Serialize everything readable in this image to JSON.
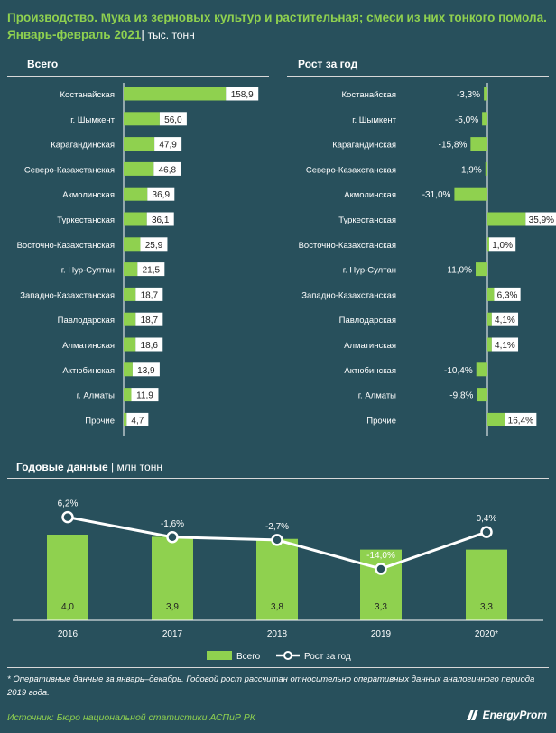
{
  "header": {
    "title": "Производство. Мука из зерновых культур и растительная; смеси из них тонкого помола.",
    "subtitle": "Январь-февраль 2021",
    "unit": "тыс. тонн"
  },
  "chart_data": [
    {
      "type": "bar",
      "orientation": "horizontal",
      "title": "Всего",
      "unit": "тыс. тонн",
      "categories": [
        "Костанайская",
        "г. Шымкент",
        "Карагандинская",
        "Северо-Казахстанская",
        "Акмолинская",
        "Туркестанская",
        "Восточно-Казахстанская",
        "г. Нур-Султан",
        "Западно-Казахстанская",
        "Павлодарская",
        "Алматинская",
        "Актюбинская",
        "г. Алматы",
        "Прочие"
      ],
      "values": [
        158.9,
        56.0,
        47.9,
        46.8,
        36.9,
        36.1,
        25.9,
        21.5,
        18.7,
        18.7,
        18.6,
        13.9,
        11.9,
        4.7
      ],
      "labels": [
        "158,9",
        "56,0",
        "47,9",
        "46,8",
        "36,9",
        "36,1",
        "25,9",
        "21,5",
        "18,7",
        "18,7",
        "18,6",
        "13,9",
        "11,9",
        "4,7"
      ],
      "xlim": [
        0,
        160
      ]
    },
    {
      "type": "bar",
      "orientation": "horizontal",
      "title": "Рост за год",
      "unit": "%",
      "categories": [
        "Костанайская",
        "г. Шымкент",
        "Карагандинская",
        "Северо-Казахстанская",
        "Акмолинская",
        "Туркестанская",
        "Восточно-Казахстанская",
        "г. Нур-Султан",
        "Западно-Казахстанская",
        "Павлодарская",
        "Алматинская",
        "Актюбинская",
        "г. Алматы",
        "Прочие"
      ],
      "values": [
        -3.3,
        -5.0,
        -15.8,
        -1.9,
        -31.0,
        35.9,
        1.0,
        -11.0,
        6.3,
        4.1,
        4.1,
        -10.4,
        -9.8,
        16.4
      ],
      "labels": [
        "-3,3%",
        "-5,0%",
        "-15,8%",
        "-1,9%",
        "-31,0%",
        "35,9%",
        "1,0%",
        "-11,0%",
        "6,3%",
        "4,1%",
        "4,1%",
        "-10,4%",
        "-9,8%",
        "16,4%"
      ],
      "xlim": [
        -31,
        36
      ]
    },
    {
      "type": "bar+line",
      "title": "Годовые данные",
      "unit": "млн тонн",
      "categories": [
        "2016",
        "2017",
        "2018",
        "2019",
        "2020*"
      ],
      "series": [
        {
          "name": "Всего",
          "type": "bar",
          "values": [
            4.0,
            3.9,
            3.8,
            3.3,
            3.3
          ],
          "labels": [
            "4,0",
            "3,9",
            "3,8",
            "3,3",
            "3,3"
          ]
        },
        {
          "name": "Рост за год",
          "type": "line",
          "values": [
            6.2,
            -1.6,
            -2.7,
            -14.0,
            0.4
          ],
          "labels": [
            "6,2%",
            "-1,6%",
            "-2,7%",
            "-14,0%",
            "0,4%"
          ]
        }
      ],
      "ylim_bars": [
        0,
        5.5
      ],
      "ylim_line": [
        -20,
        11
      ],
      "legend": "bottom-center"
    }
  ],
  "footnote": "* Оперативные данные за январь–декабрь. Годовой рост рассчитан относительно оперативных данных аналогичного периода 2019 года.",
  "source": "Источник: Бюро национальной статистики АСПиР РК",
  "logo": "EnergyProm",
  "colors": {
    "background": "#28505c",
    "accent": "#8fd14f",
    "bar": "#8fd14f",
    "bar_label_bg": "#ffffff",
    "text": "#ffffff",
    "line": "#ffffff"
  }
}
